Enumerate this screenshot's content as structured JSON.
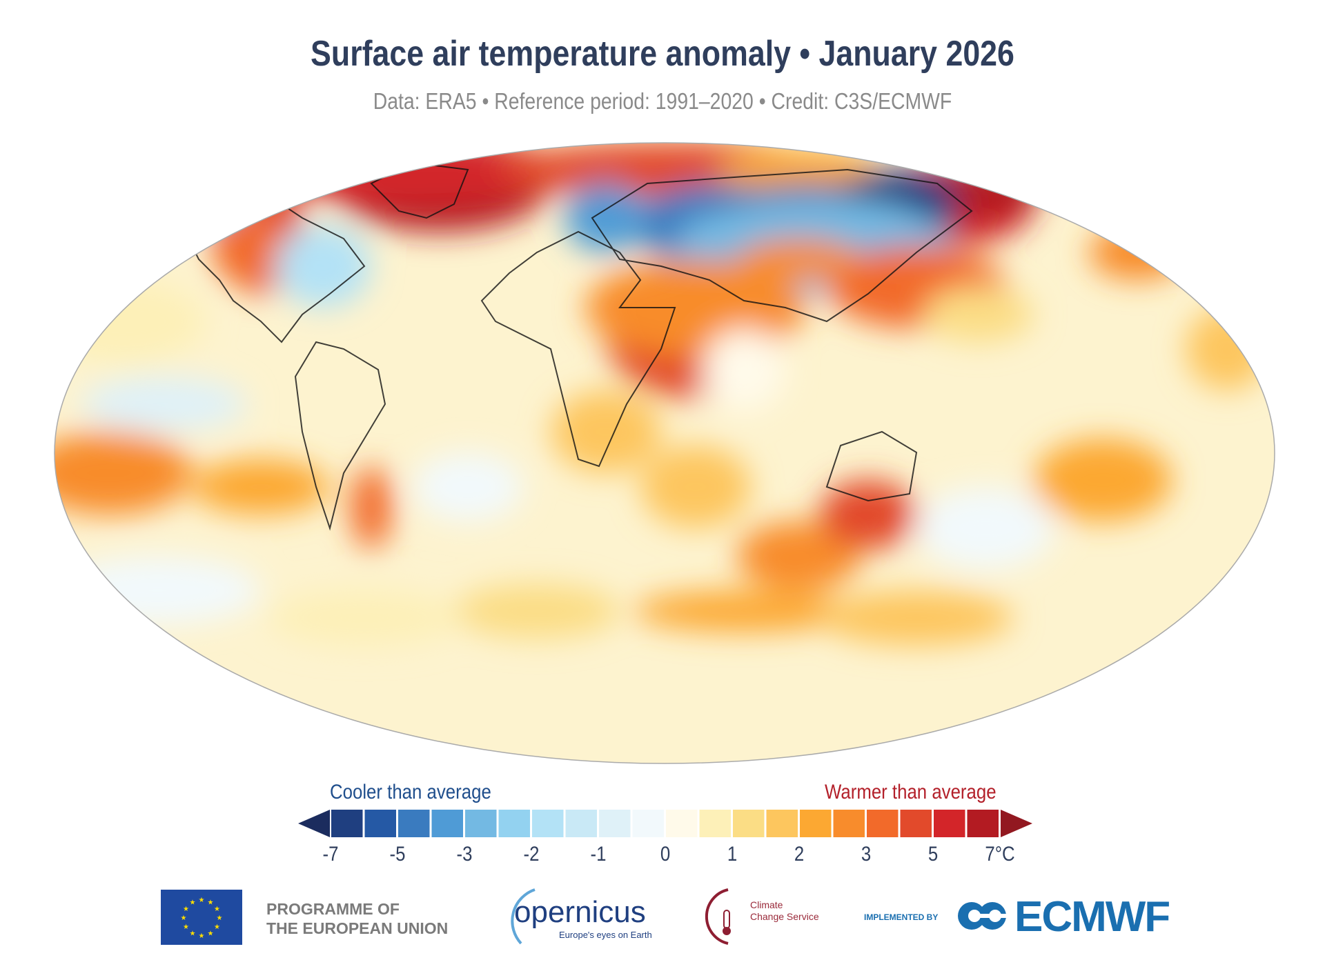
{
  "title": "Surface air temperature anomaly • January 2026",
  "subtitle": "Data: ERA5 • Reference period: 1991–2020 • Credit: C3S/ECMWF",
  "chart_data": {
    "type": "heatmap",
    "projection": "Robinson (global map)",
    "title": "Surface air temperature anomaly • January 2026",
    "subtitle": "Data: ERA5 • Reference period: 1991–2020 • Credit: C3S/ECMWF",
    "colorbar": {
      "label_cool": "Cooler than average",
      "label_warm": "Warmer than average",
      "tick_labels": [
        "-7",
        "-5",
        "-3",
        "-2",
        "-1",
        "0",
        "1",
        "2",
        "3",
        "5",
        "7°C"
      ],
      "colors": [
        "#1f3f80",
        "#2559a5",
        "#3a7bbf",
        "#4f9bd6",
        "#73b9e3",
        "#93d2f0",
        "#b3e2f6",
        "#c9e9f6",
        "#dff1f8",
        "#f2f9fc",
        "#fffaea",
        "#fdf0b8",
        "#fbdd85",
        "#fdc65e",
        "#fca832",
        "#f88c2c",
        "#f26a2a",
        "#e24a2b",
        "#d32529",
        "#b31b22"
      ],
      "under_color": "#1b2c5e",
      "over_color": "#921820",
      "extend": "both"
    }
  },
  "logos": {
    "eu": "PROGRAMME OF THE EUROPEAN UNION",
    "eu_line1": "PROGRAMME OF",
    "eu_line2": "THE EUROPEAN UNION",
    "copernicus": "opernicus",
    "copernicus_tagline": "Europe's eyes on Earth",
    "c3s_line1": "Climate",
    "c3s_line2": "Change Service",
    "implemented_by": "IMPLEMENTED BY",
    "ecmwf": "ECMWF"
  }
}
